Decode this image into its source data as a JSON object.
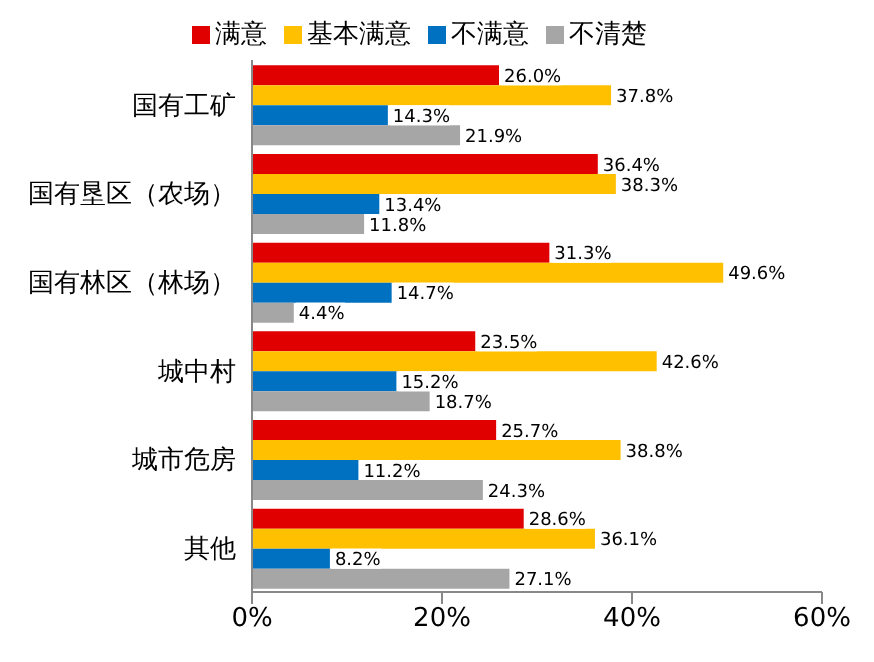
{
  "chart_data": {
    "type": "bar",
    "orientation": "horizontal",
    "categories": [
      "国有工矿",
      "国有垦区（农场）",
      "国有林区（林场）",
      "城中村",
      "城市危房",
      "其他"
    ],
    "series": [
      {
        "name": "满意",
        "color": "#e00000",
        "values": [
          26.0,
          36.4,
          31.3,
          23.5,
          25.7,
          28.6
        ],
        "value_labels": [
          "26.0%",
          "36.4%",
          "31.3%",
          "23.5%",
          "25.7%",
          "28.6%"
        ]
      },
      {
        "name": "基本满意",
        "color": "#ffc000",
        "values": [
          37.8,
          38.3,
          49.6,
          42.6,
          38.8,
          36.1
        ],
        "value_labels": [
          "37.8%",
          "38.3%",
          "49.6%",
          "42.6%",
          "38.8%",
          "36.1%"
        ]
      },
      {
        "name": "不满意",
        "color": "#0070c0",
        "values": [
          14.3,
          13.4,
          14.7,
          15.2,
          11.2,
          8.2
        ],
        "value_labels": [
          "14.3%",
          "13.4%",
          "14.7%",
          "15.2%",
          "11.2%",
          "8.2%"
        ]
      },
      {
        "name": "不清楚",
        "color": "#a6a6a6",
        "values": [
          21.9,
          11.8,
          4.4,
          18.7,
          24.3,
          27.1
        ],
        "value_labels": [
          "21.9%",
          "11.8%",
          "4.4%",
          "18.7%",
          "24.3%",
          "27.1%"
        ]
      }
    ],
    "xlim": [
      0,
      60
    ],
    "xticks": [
      {
        "value": 0,
        "label": "0%"
      },
      {
        "value": 20,
        "label": "20%"
      },
      {
        "value": 40,
        "label": "40%"
      },
      {
        "value": 60,
        "label": "60%"
      }
    ],
    "legend": "top",
    "grid": false
  }
}
